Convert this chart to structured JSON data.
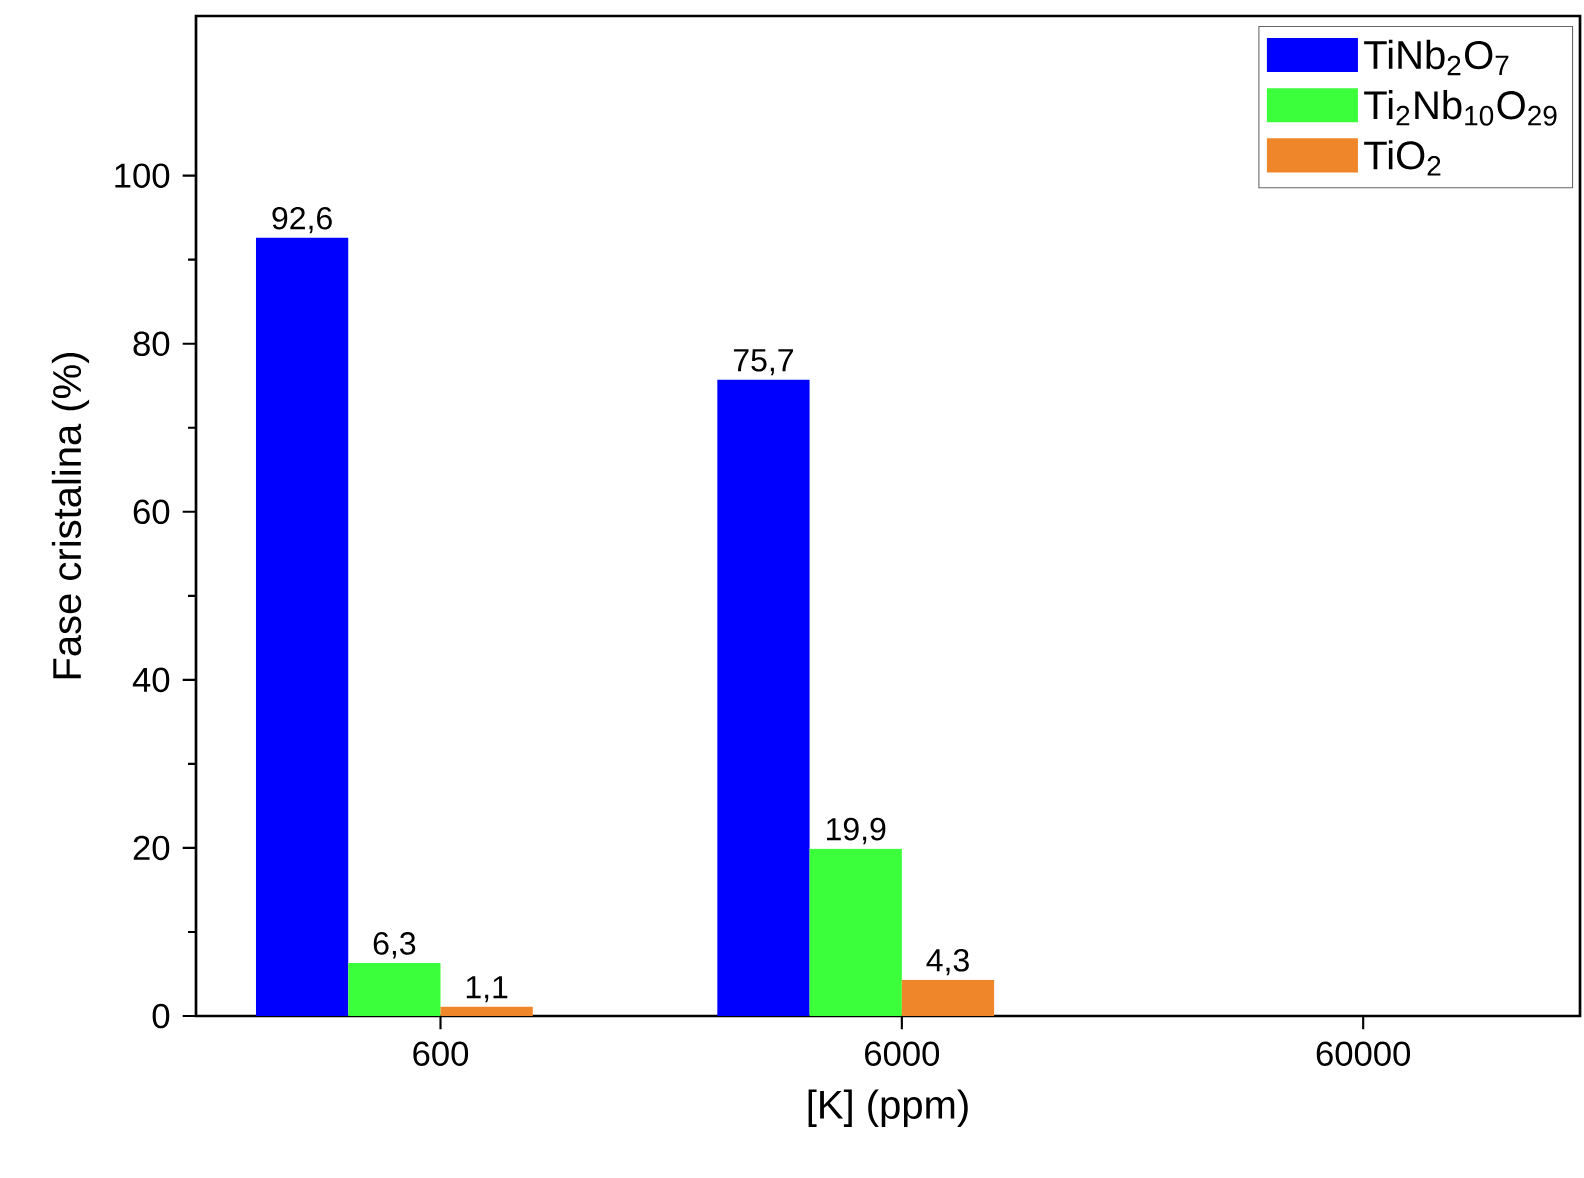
{
  "chart_data": {
    "type": "bar",
    "xlabel": "[K] (ppm)",
    "ylabel": "Fase cristalina (%)",
    "categories": [
      "600",
      "6000",
      "60000"
    ],
    "series": [
      {
        "name": "TiNb$_{2}$O$_{7}$",
        "color": "#0000ff",
        "values": [
          92.6,
          75.7,
          null
        ],
        "value_labels": [
          "92,6",
          "75,7",
          null
        ]
      },
      {
        "name": "Ti$_{2}$Nb$_{10}$O$_{29}$",
        "color": "#3cff3c",
        "values": [
          6.3,
          19.9,
          null
        ],
        "value_labels": [
          "6,3",
          "19,9",
          null
        ]
      },
      {
        "name": "TiO$_{2}$",
        "color": "#f0862a",
        "values": [
          1.1,
          4.3,
          null
        ],
        "value_labels": [
          "1,1",
          "4,3",
          null
        ]
      }
    ],
    "ylim": [
      0,
      119
    ],
    "yticks": [
      0,
      20,
      40,
      60,
      80,
      100
    ],
    "grid": false,
    "legend": "top right"
  }
}
